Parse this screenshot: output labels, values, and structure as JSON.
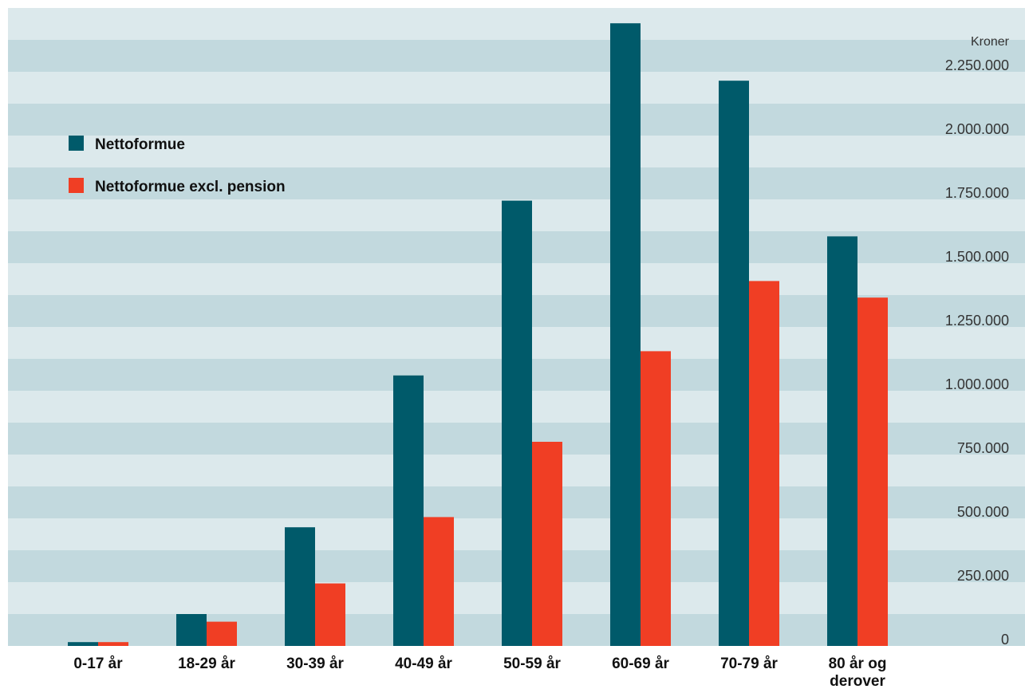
{
  "chart_data": {
    "type": "bar",
    "title": "",
    "xlabel": "",
    "ylabel": "",
    "unit_label": "Kroner",
    "categories": [
      [
        "0-17 år"
      ],
      [
        "18-29 år"
      ],
      [
        "30-39 år"
      ],
      [
        "40-49 år"
      ],
      [
        "50-59 år"
      ],
      [
        "60-69 år"
      ],
      [
        "70-79 år"
      ],
      [
        "80 år og",
        "derover"
      ]
    ],
    "series": [
      {
        "name": "Nettoformue",
        "color": "#005a6a",
        "values": [
          15000,
          125000,
          465000,
          1060000,
          1745000,
          2440000,
          2215000,
          1605000
        ]
      },
      {
        "name": "Nettoformue excl. pension",
        "color": "#f03e24",
        "values": [
          15000,
          95000,
          245000,
          505000,
          800000,
          1155000,
          1430000,
          1365000
        ]
      }
    ],
    "yticks": [
      {
        "value": 0,
        "label": "0"
      },
      {
        "value": 250000,
        "label": "250.000"
      },
      {
        "value": 500000,
        "label": "500.000"
      },
      {
        "value": 750000,
        "label": "750.000"
      },
      {
        "value": 1000000,
        "label": "1.000.000"
      },
      {
        "value": 1250000,
        "label": "1.250.000"
      },
      {
        "value": 1500000,
        "label": "1.500.000"
      },
      {
        "value": 1750000,
        "label": "1.750.000"
      },
      {
        "value": 2000000,
        "label": "2.000.000"
      },
      {
        "value": 2250000,
        "label": "2.250.000"
      }
    ],
    "ylim": [
      0,
      2500000
    ],
    "band_step": 125000,
    "band_colors": [
      "#c2d9de",
      "#dce9ec"
    ],
    "grid": false,
    "legend_position": "top-left"
  }
}
